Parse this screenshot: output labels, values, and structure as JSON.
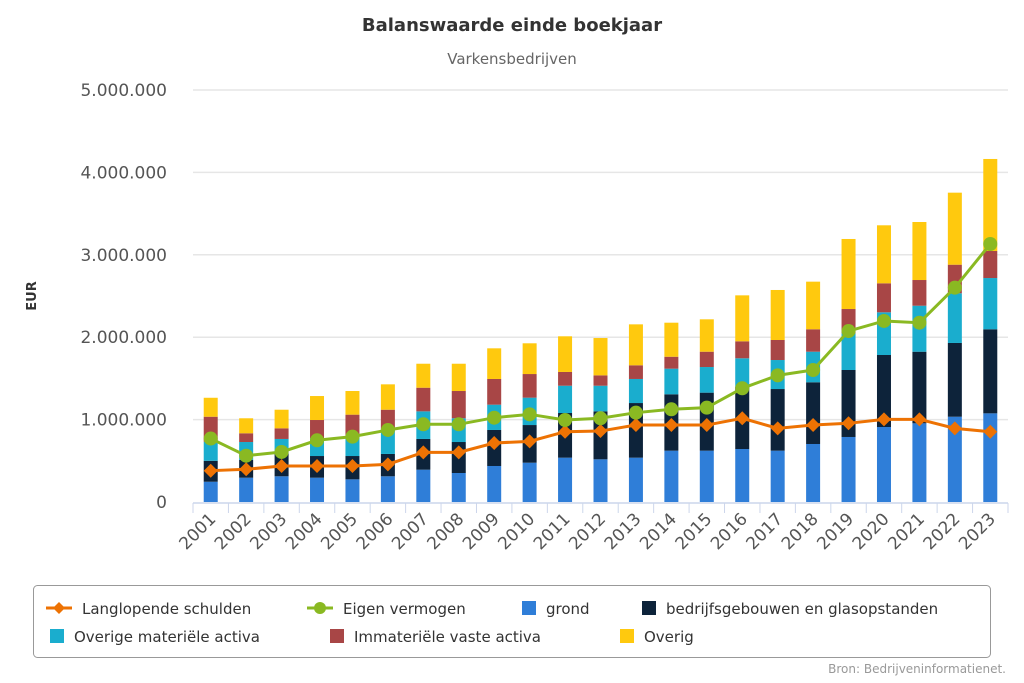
{
  "chart_data": {
    "type": "bar",
    "stacked": true,
    "title": "Balanswaarde einde boekjaar",
    "subtitle": "Varkensbedrijven",
    "xlabel": "",
    "ylabel": "EUR",
    "ylim": [
      0,
      5000000
    ],
    "yticks": [
      0,
      1000000,
      2000000,
      3000000,
      4000000,
      5000000
    ],
    "ytick_labels": [
      "0",
      "1.000.000",
      "2.000.000",
      "3.000.000",
      "4.000.000",
      "5.000.000"
    ],
    "grid": true,
    "legend_position": "bottom",
    "categories": [
      "2001",
      "2002",
      "2003",
      "2004",
      "2005",
      "2006",
      "2007",
      "2008",
      "2009",
      "2010",
      "2011",
      "2012",
      "2013",
      "2014",
      "2015",
      "2016",
      "2017",
      "2018",
      "2019",
      "2020",
      "2021",
      "2022",
      "2023"
    ],
    "series": [
      {
        "name": "grond",
        "type": "bar",
        "color": "#2f7ed8",
        "values": [
          246000,
          295000,
          312000,
          295000,
          275000,
          312000,
          392000,
          352000,
          437000,
          477000,
          538000,
          518000,
          538000,
          623000,
          623000,
          643000,
          623000,
          704000,
          789000,
          910000,
          955000,
          1035000,
          1076000
        ]
      },
      {
        "name": "bedrijfsgebouwen en glasopstanden",
        "type": "bar",
        "color": "#0d233a",
        "values": [
          254000,
          215000,
          278000,
          263000,
          283000,
          271000,
          373000,
          376000,
          437000,
          457000,
          542000,
          582000,
          663000,
          684000,
          704000,
          757000,
          748000,
          749000,
          813000,
          874000,
          869000,
          895000,
          1020000
        ]
      },
      {
        "name": "Overige materiële activa",
        "type": "bar",
        "color": "#1aadce",
        "values": [
          230000,
          218000,
          175000,
          215000,
          235000,
          291000,
          335000,
          288000,
          307000,
          332000,
          331000,
          311000,
          292000,
          311000,
          311000,
          344000,
          352000,
          371000,
          445000,
          518000,
          558000,
          603000,
          622000
        ]
      },
      {
        "name": "Immateriële vaste activa",
        "type": "bar",
        "color": "#a84646",
        "values": [
          305000,
          106000,
          129000,
          222000,
          267000,
          246000,
          287000,
          331000,
          312000,
          287000,
          167000,
          126000,
          166000,
          145000,
          186000,
          206000,
          243000,
          272000,
          295000,
          352000,
          312000,
          347000,
          328000
        ]
      },
      {
        "name": "Overig",
        "type": "bar",
        "color": "#ffc90e",
        "values": [
          230000,
          182000,
          226000,
          291000,
          287000,
          308000,
          291000,
          331000,
          372000,
          373000,
          433000,
          453000,
          497000,
          413000,
          393000,
          558000,
          607000,
          578000,
          850000,
          704000,
          704000,
          874000,
          1117000
        ]
      },
      {
        "name": "Langlopende schulden",
        "type": "line",
        "marker": "diamond",
        "color": "#ed7203",
        "values": [
          380000,
          397000,
          437000,
          437000,
          437000,
          457000,
          603000,
          603000,
          716000,
          736000,
          853000,
          861000,
          934000,
          934000,
          934000,
          1016000,
          894000,
          934000,
          955000,
          1003000,
          1003000,
          894000,
          853000
        ]
      },
      {
        "name": "Eigen vermogen",
        "type": "line",
        "marker": "circle",
        "color": "#8ab922",
        "values": [
          770000,
          562000,
          607000,
          749000,
          793000,
          874000,
          943000,
          943000,
          1023000,
          1064000,
          995000,
          1016000,
          1084000,
          1125000,
          1145000,
          1380000,
          1537000,
          1602000,
          2075000,
          2197000,
          2176000,
          2601000,
          3131000
        ]
      }
    ],
    "legend_order": [
      "Langlopende schulden",
      "Eigen vermogen",
      "grond",
      "bedrijfsgebouwen en glasopstanden",
      "Overige materiële activa",
      "Immateriële vaste activa",
      "Overig"
    ],
    "source": "Bron: Bedrijveninformatienet."
  }
}
